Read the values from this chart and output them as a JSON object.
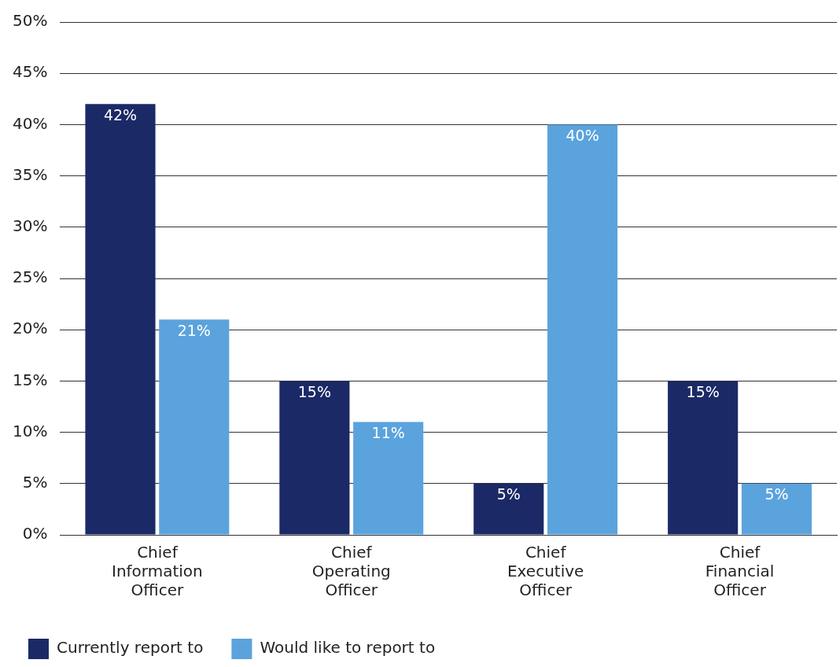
{
  "chart_data": {
    "type": "bar",
    "categories": [
      "Chief Information Officer",
      "Chief Operating Officer",
      "Chief Executive Officer",
      "Chief Financial Officer"
    ],
    "series": [
      {
        "name": "Currently report to",
        "color": "#1b2966",
        "values": [
          42,
          15,
          5,
          15
        ],
        "value_labels": [
          "42%",
          "15%",
          "5%",
          "15%"
        ]
      },
      {
        "name": "Would like to report to",
        "color": "#5ba3dd",
        "values": [
          21,
          11,
          40,
          5
        ],
        "value_labels": [
          "21%",
          "11%",
          "40%",
          "5%"
        ]
      }
    ],
    "ylim": [
      0,
      50
    ],
    "yticks": [
      {
        "value": 0,
        "label": "0%"
      },
      {
        "value": 5,
        "label": "5%"
      },
      {
        "value": 10,
        "label": "10%"
      },
      {
        "value": 15,
        "label": "15%"
      },
      {
        "value": 20,
        "label": "20%"
      },
      {
        "value": 25,
        "label": "25%"
      },
      {
        "value": 30,
        "label": "30%"
      },
      {
        "value": 35,
        "label": "35%"
      },
      {
        "value": 40,
        "label": "40%"
      },
      {
        "value": 45,
        "label": "45%"
      },
      {
        "value": 50,
        "label": "50%"
      }
    ],
    "grid": "y",
    "legend": "bottom left"
  }
}
